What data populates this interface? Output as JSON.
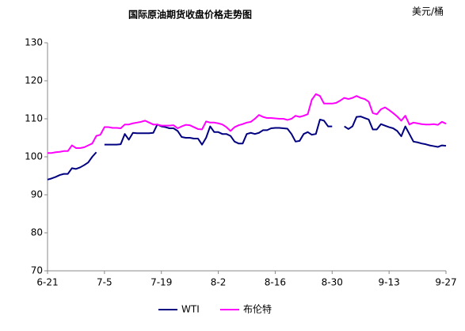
{
  "chart_data": {
    "type": "line",
    "title": "国际原油期货收盘价格走势图",
    "unit_label": "美元/桶",
    "categories": [
      "6-21",
      null,
      null,
      null,
      null,
      null,
      null,
      null,
      null,
      null,
      null,
      null,
      null,
      null,
      "7-5",
      null,
      null,
      null,
      null,
      null,
      null,
      null,
      null,
      null,
      null,
      null,
      null,
      null,
      "7-19",
      null,
      null,
      null,
      null,
      null,
      null,
      null,
      null,
      null,
      null,
      null,
      null,
      null,
      "8-2",
      null,
      null,
      null,
      null,
      null,
      null,
      null,
      null,
      null,
      null,
      null,
      null,
      null,
      "8-16",
      null,
      null,
      null,
      null,
      null,
      null,
      null,
      null,
      null,
      null,
      null,
      null,
      null,
      "8-30",
      null,
      null,
      null,
      null,
      null,
      null,
      null,
      null,
      null,
      null,
      null,
      null,
      null,
      "9-13",
      null,
      null,
      null,
      null,
      null,
      null,
      null,
      null,
      null,
      null,
      null,
      null,
      null,
      "9-27"
    ],
    "series": [
      {
        "name": "WTI",
        "color": "#000080",
        "values": [
          94.0,
          94.3,
          94.7,
          95.2,
          95.5,
          95.5,
          97.0,
          96.8,
          97.2,
          97.8,
          98.5,
          100.0,
          101.2,
          null,
          103.2,
          103.2,
          103.2,
          103.2,
          103.3,
          106.0,
          104.5,
          106.3,
          106.2,
          106.2,
          106.2,
          106.2,
          106.3,
          108.5,
          108.0,
          107.8,
          107.5,
          107.5,
          106.8,
          105.2,
          105.0,
          105.0,
          104.8,
          104.8,
          103.2,
          105.0,
          108.0,
          106.5,
          106.5,
          106.0,
          106.0,
          105.5,
          104.0,
          103.5,
          103.5,
          106.0,
          106.3,
          106.0,
          106.3,
          107.0,
          107.0,
          107.5,
          107.6,
          107.6,
          107.5,
          107.4,
          106.0,
          104.0,
          104.2,
          106.0,
          106.5,
          105.8,
          106.0,
          109.8,
          109.5,
          108.0,
          108.0,
          null,
          null,
          108.0,
          107.3,
          108.0,
          110.5,
          110.6,
          110.2,
          109.8,
          107.2,
          107.2,
          108.6,
          108.2,
          107.8,
          107.5,
          106.8,
          105.4,
          108.0,
          106.0,
          104.0,
          103.8,
          103.5,
          103.3,
          103.0,
          102.8,
          102.6,
          103.0,
          102.9
        ]
      },
      {
        "name": "布伦特",
        "color": "#ff00ff",
        "values": [
          101.0,
          101.0,
          101.2,
          101.3,
          101.5,
          101.5,
          103.0,
          102.3,
          102.3,
          102.5,
          103.0,
          103.5,
          105.5,
          105.8,
          107.8,
          107.8,
          107.6,
          107.6,
          107.5,
          108.5,
          108.5,
          108.8,
          109.0,
          109.2,
          109.5,
          109.0,
          108.5,
          108.5,
          108.2,
          108.2,
          108.2,
          108.3,
          107.5,
          108.0,
          108.4,
          108.3,
          107.8,
          107.3,
          107.2,
          109.3,
          109.0,
          109.0,
          108.8,
          108.5,
          107.8,
          106.8,
          107.8,
          108.3,
          108.6,
          109.0,
          109.2,
          110.0,
          111.0,
          110.5,
          110.2,
          110.2,
          110.1,
          110.0,
          110.0,
          109.7,
          110.0,
          110.8,
          110.5,
          110.8,
          111.2,
          115.0,
          116.5,
          116.0,
          114.0,
          114.0,
          114.0,
          114.2,
          114.8,
          115.5,
          115.2,
          115.5,
          116.0,
          115.5,
          115.2,
          114.5,
          111.5,
          111.2,
          112.5,
          113.0,
          112.3,
          111.5,
          110.6,
          109.5,
          110.8,
          108.5,
          109.0,
          108.8,
          108.6,
          108.5,
          108.5,
          108.6,
          108.4,
          109.2,
          108.7
        ]
      }
    ],
    "ylim": [
      70,
      130
    ],
    "yticks": [
      70,
      80,
      90,
      100,
      110,
      120,
      130
    ],
    "grid": false,
    "legend": "bottom"
  }
}
